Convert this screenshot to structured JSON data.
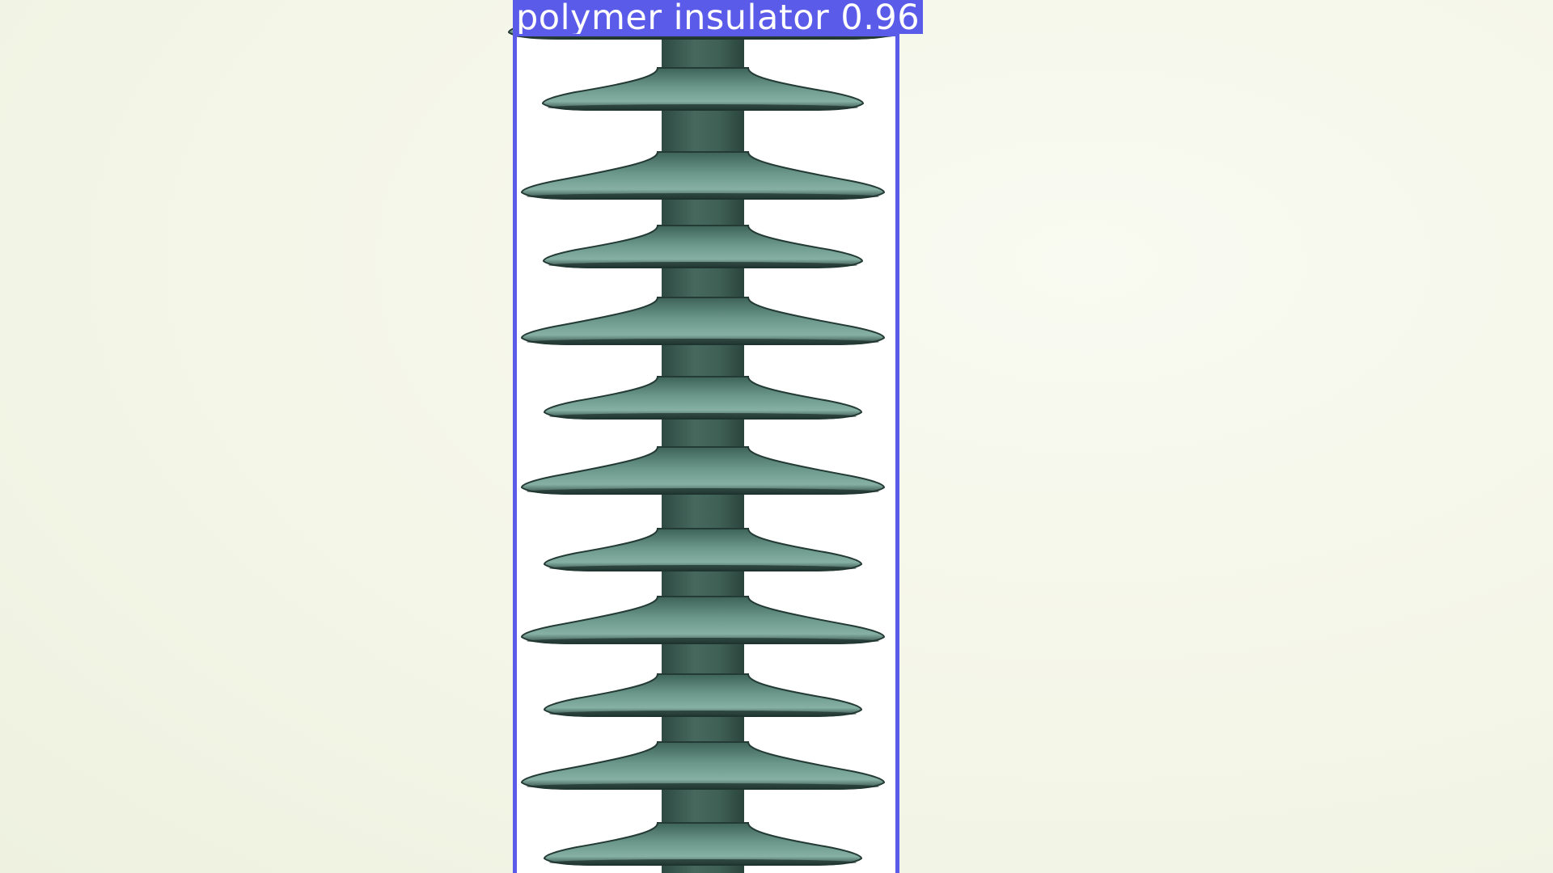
{
  "scene": {
    "subject": "polymer insulator",
    "background_color": "#f6f8ec",
    "object_colors": {
      "shed": "#5f8a7c",
      "shed_edge": "#2f4a42",
      "core": "#3d5f54"
    },
    "shed_count": 12
  },
  "detection": {
    "label": "polymer insulator 0.96",
    "class": "polymer insulator",
    "confidence": 0.96,
    "box_color": "#5b5bea",
    "label_text_color": "#ffffff"
  }
}
